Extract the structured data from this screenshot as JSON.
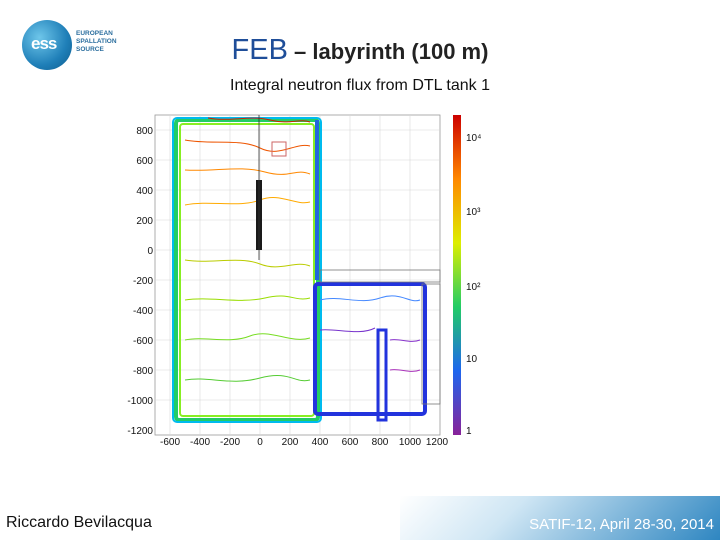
{
  "logo": {
    "mark": "ess",
    "lines": [
      "EUROPEAN",
      "SPALLATION",
      "SOURCE"
    ]
  },
  "slide": {
    "title_main": "FEB",
    "title_rest": " – labyrinth (100 m)",
    "subtitle": "Integral neutron flux from DTL tank 1",
    "author": "Riccardo Bevilacqua",
    "footer": "SATIF-12, April 28-30, 2014"
  },
  "plot": {
    "y_ticks": [
      "800",
      "600",
      "400",
      "200",
      "0",
      "-200",
      "-400",
      "-600",
      "-800",
      "-1000",
      "-1200"
    ],
    "x_ticks": [
      "-600",
      "-400",
      "-200",
      "0",
      "200",
      "400",
      "600",
      "800",
      "1000",
      "1200"
    ],
    "colorbar_labels": [
      "10⁴",
      "10³",
      "10²",
      "10",
      "1"
    ],
    "colors": {
      "frame": "#888888",
      "wall_dark": "#1a1a1a"
    }
  }
}
